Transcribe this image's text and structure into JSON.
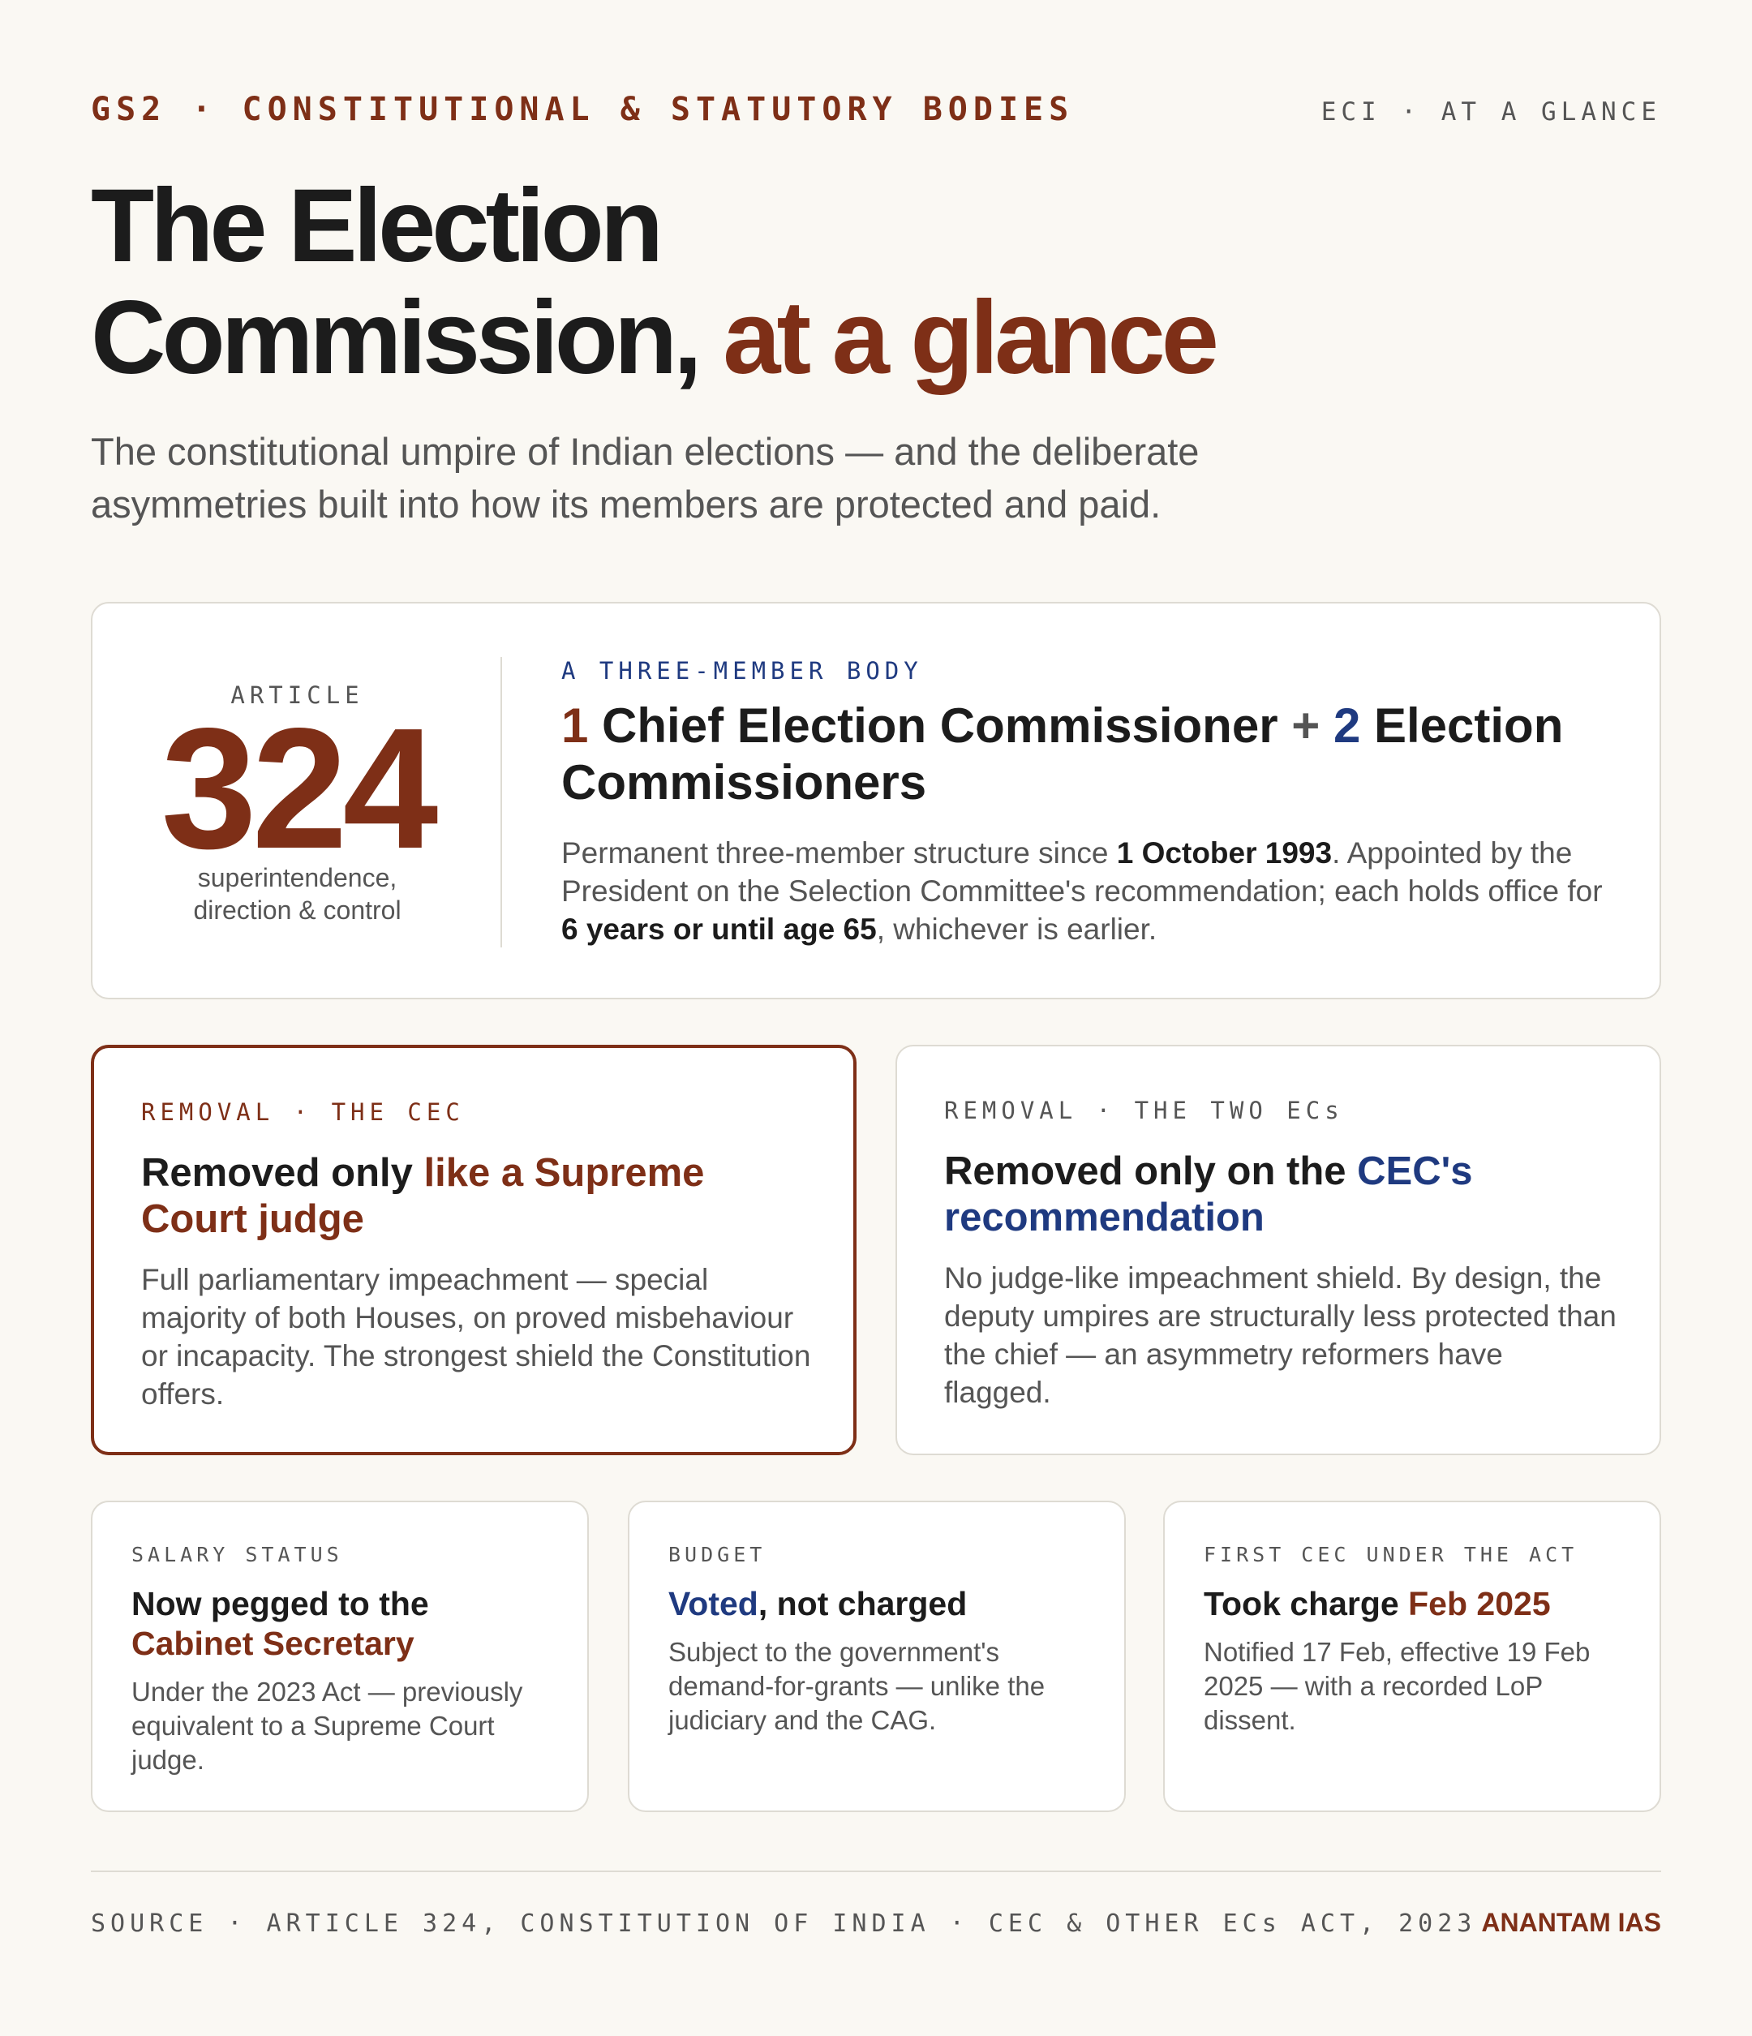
{
  "header": {
    "kicker": "GS2 · CONSTITUTIONAL & STATUTORY BODIES",
    "tag_right": "ECI · AT A GLANCE"
  },
  "title": {
    "line1": "The Election",
    "line2_main": "Commission,",
    "line2_accent": "at a glance"
  },
  "subtitle": "The constitutional umpire of Indian elections — and the deliberate asymmetries built into how its members are protected and paid.",
  "article": {
    "label": "ARTICLE",
    "number": "324",
    "caption_line1": "superintendence,",
    "caption_line2": "direction & control"
  },
  "structure": {
    "tag": "A THREE-MEMBER BODY",
    "num1": "1",
    "text1": " Chief Election Commissioner ",
    "plus": "+",
    "num2": "2",
    "text2": " Election Commissioners",
    "body_1": "Permanent three-member structure since ",
    "body_bold_1": "1 October 1993",
    "body_2": ". Appointed by the President on the Selection Committee's recommendation; each holds office for ",
    "body_bold_2": "6 years or until age 65",
    "body_3": ", whichever is earlier."
  },
  "removal_cec": {
    "tag": "REMOVAL · THE CEC",
    "head_plain": "Removed only ",
    "head_accent": "like a Supreme Court judge",
    "body": "Full parliamentary impeachment — special majority of both Houses, on proved misbehaviour or incapacity. The strongest shield the Constitution offers."
  },
  "removal_ecs": {
    "tag": "REMOVAL · THE TWO ECs",
    "head_plain": "Removed only on the ",
    "head_accent": "CEC's recommendation",
    "body": "No judge-like impeachment shield. By design, the deputy umpires are structurally less protected than the chief — an asymmetry reformers have flagged."
  },
  "salary": {
    "tag": "SALARY STATUS",
    "head_plain": "Now pegged to the ",
    "head_accent": "Cabinet Secretary",
    "body": "Under the 2023 Act — previously equivalent to a Supreme Court judge."
  },
  "budget": {
    "tag": "BUDGET",
    "head_accent": "Voted",
    "head_plain": ", not charged",
    "body": "Subject to the government's demand-for-grants — unlike the judiciary and the CAG."
  },
  "first_cec": {
    "tag": "FIRST CEC UNDER THE ACT",
    "head_plain": "Took charge ",
    "head_accent": "Feb 2025",
    "body": "Notified 17 Feb, effective 19 Feb 2025 — with a recorded LoP dissent."
  },
  "footer": {
    "source": "SOURCE · ARTICLE 324, CONSTITUTION OF INDIA · CEC & OTHER ECs ACT, 2023",
    "brand": "ANANTAM IAS"
  },
  "colors": {
    "accent_rust": "#7e2f17",
    "accent_navy": "#1f3a80",
    "background": "#faf8f3"
  }
}
